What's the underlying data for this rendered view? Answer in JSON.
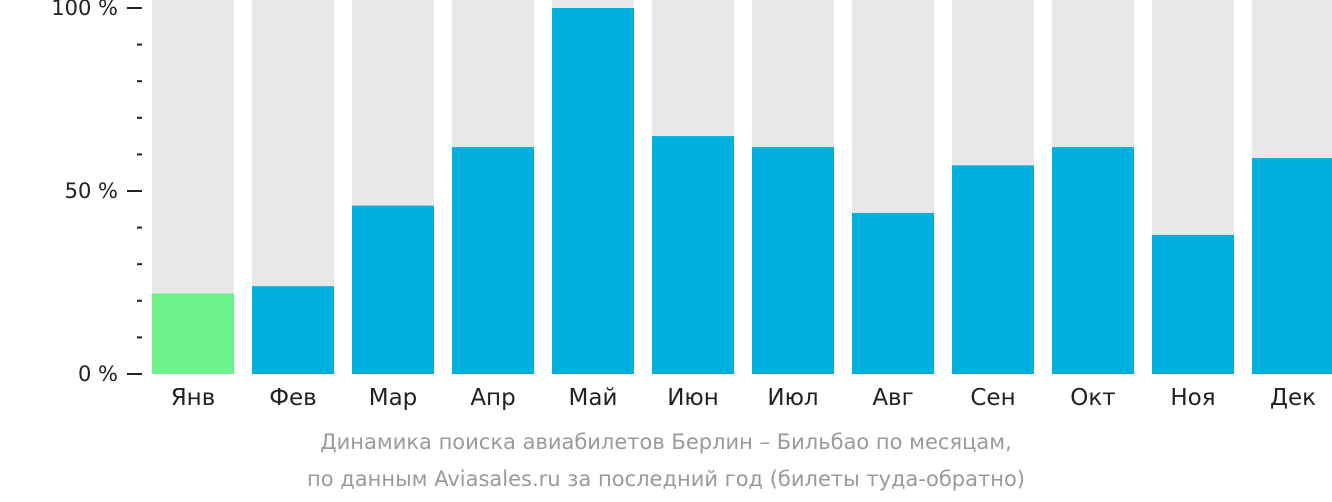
{
  "chart_data": {
    "type": "bar",
    "categories": [
      "Янв",
      "Фев",
      "Мар",
      "Апр",
      "Май",
      "Июн",
      "Июл",
      "Авг",
      "Сен",
      "Окт",
      "Ноя",
      "Дек"
    ],
    "values": [
      22,
      24,
      46,
      62,
      100,
      65,
      62,
      44,
      57,
      62,
      38,
      59
    ],
    "ylim": [
      0,
      100
    ],
    "yticks": [
      {
        "value": 100,
        "label": "100 %"
      },
      {
        "value": 50,
        "label": "50 %"
      },
      {
        "value": 0,
        "label": "0 %"
      }
    ],
    "minor_tick_step": 10,
    "highlight_index": 0,
    "colors": {
      "bar": "#00b0de",
      "highlight": "#6cf38a",
      "background_bar": "#e8e8e8",
      "axis": "#222222"
    },
    "caption": [
      "Динамика поиска авиабилетов Берлин – Бильбао по месяцам,",
      "по данным Aviasales.ru за последний год (билеты туда-обратно)"
    ]
  }
}
